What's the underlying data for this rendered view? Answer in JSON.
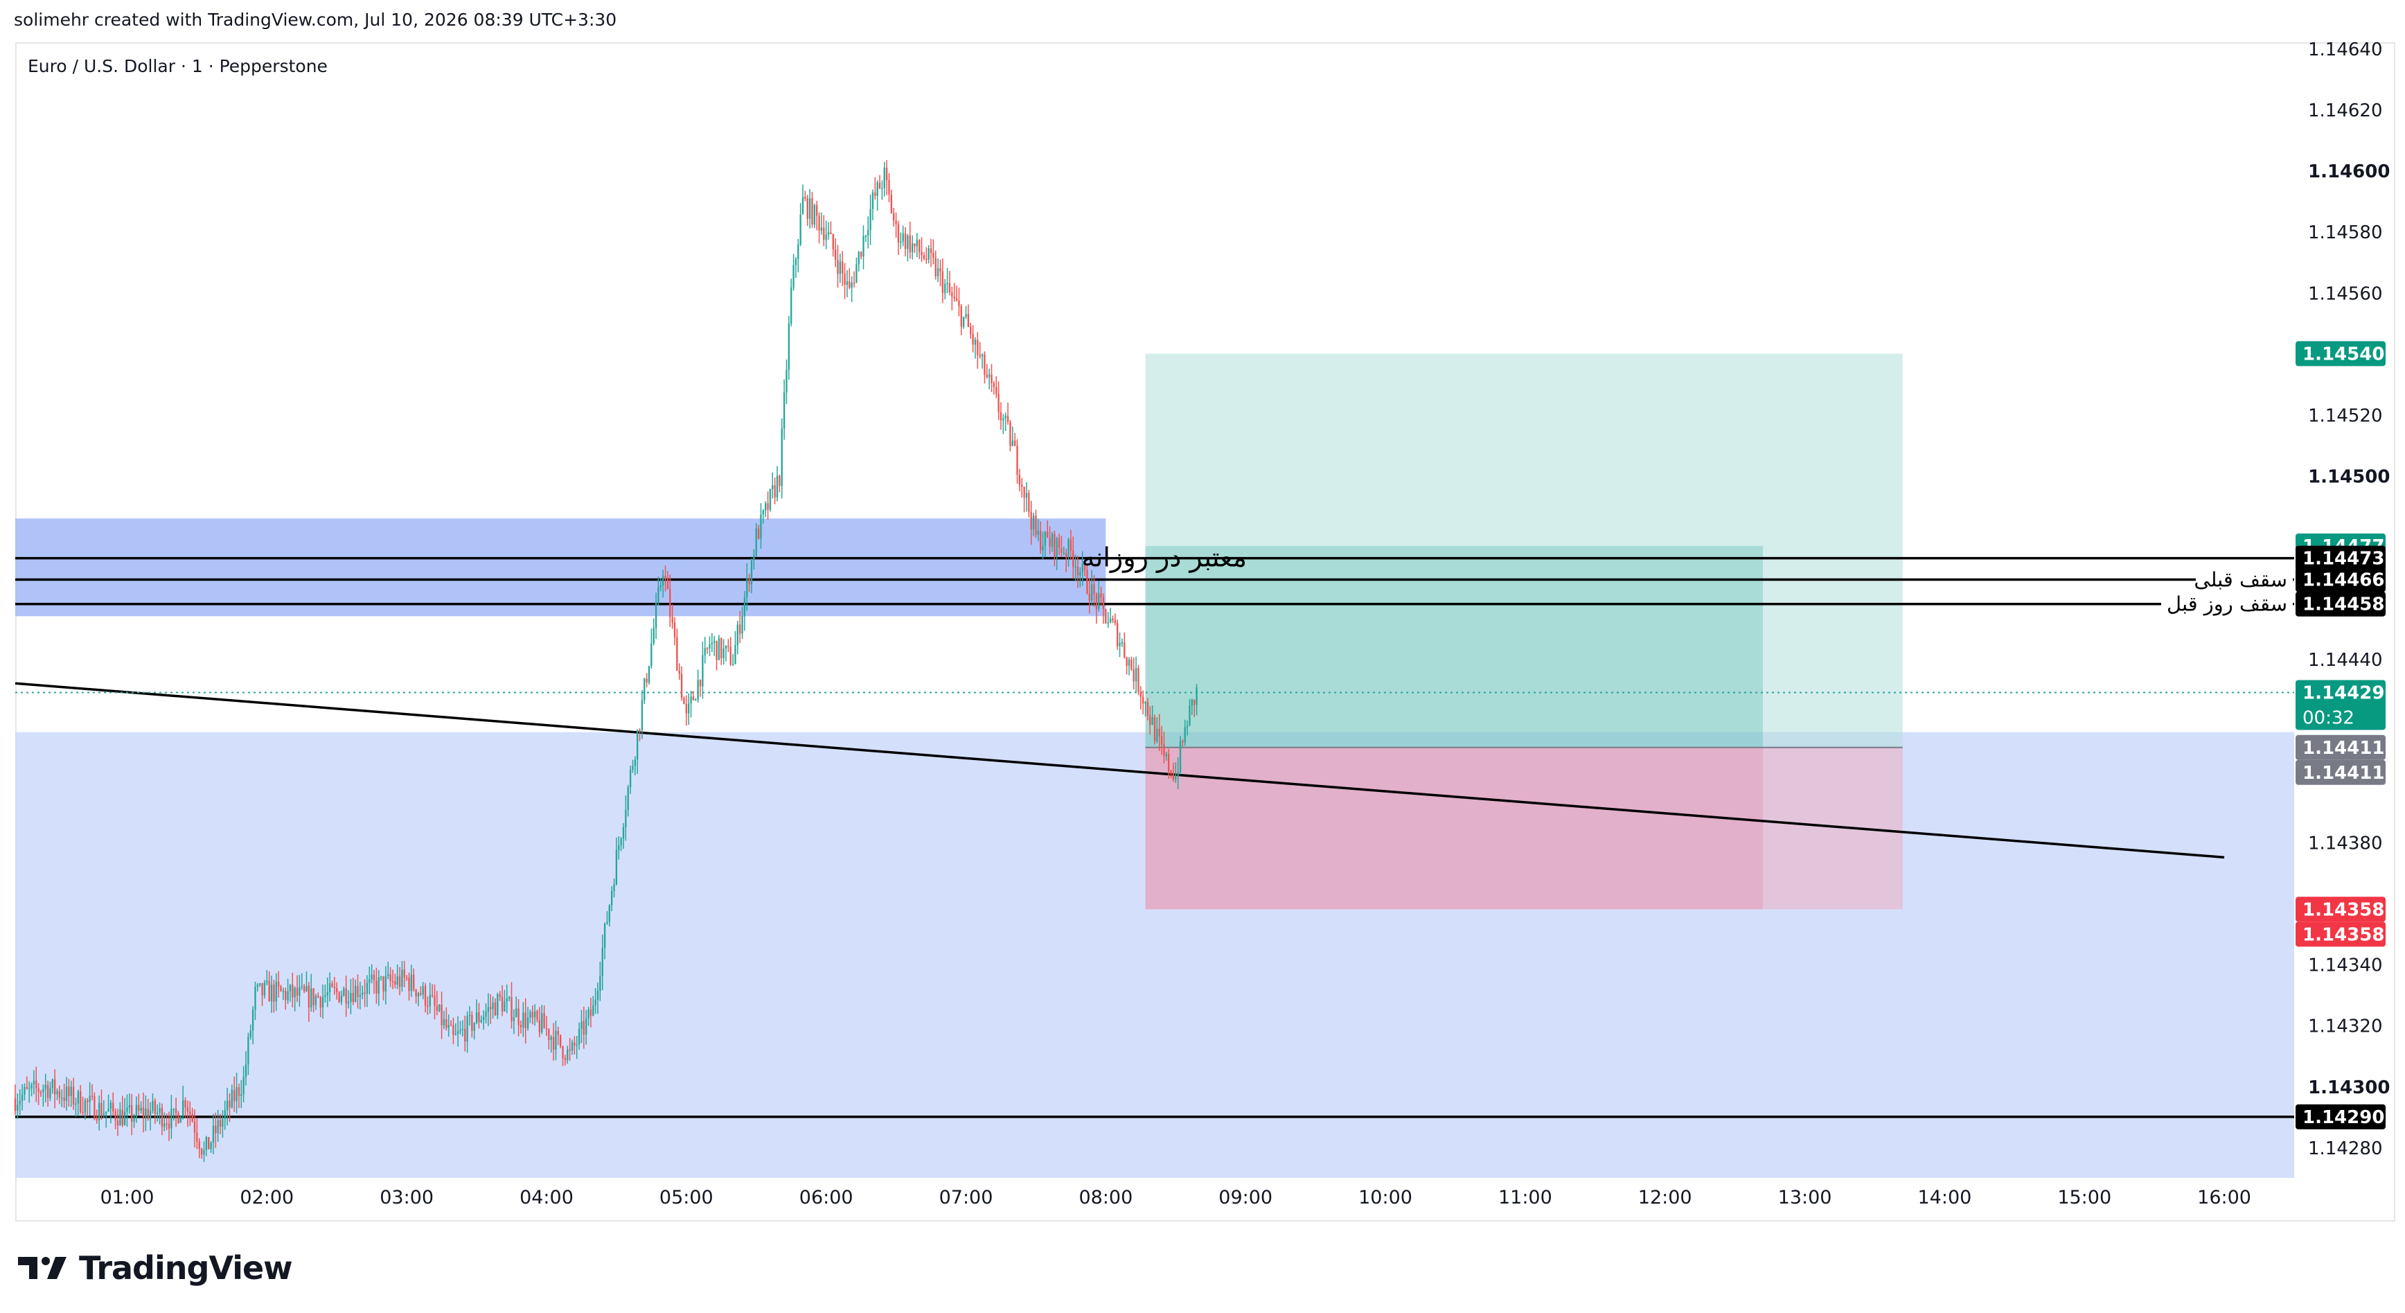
{
  "header": {
    "caption": "solimehr created with TradingView.com, Jul 10, 2026 08:39 UTC+3:30"
  },
  "symbol": {
    "title": "Euro / U.S. Dollar · 1 · Pepperstone"
  },
  "branding": {
    "logo_text": "TradingView",
    "logo_icon": "tradingview-logo-icon"
  },
  "colors": {
    "up": "#26a69a",
    "down": "#ef5350",
    "demand_zone": "#c9d7fb",
    "supply_zone": "#9cb4f8",
    "profit_zone": "#b2dfdb",
    "loss_zone": "#f5a5b4",
    "target_label": "#089981",
    "stop_label": "#f23645",
    "level_label": "#000000",
    "current_label": "#089981",
    "entry_label": "#787b86"
  },
  "chart_data": {
    "type": "candlestick",
    "title": "Euro / U.S. Dollar · 1 · Pepperstone",
    "xlabel": "",
    "ylabel": "",
    "ylim": [
      1.1427,
      1.14642
    ],
    "xlim": [
      "00:12",
      "16:30"
    ],
    "x_ticks": [
      "01:00",
      "02:00",
      "03:00",
      "04:00",
      "05:00",
      "06:00",
      "07:00",
      "08:00",
      "09:00",
      "10:00",
      "11:00",
      "12:00",
      "13:00",
      "14:00",
      "15:00",
      "16:00"
    ],
    "y_ticks": [
      "1.14280",
      "1.14300",
      "1.14320",
      "1.14340",
      "1.14380",
      "1.14440",
      "1.14500",
      "1.14520",
      "1.14560",
      "1.14580",
      "1.14600",
      "1.14620",
      "1.14640"
    ],
    "y_ticks_bold": [
      "1.14300",
      "1.14500",
      "1.14600"
    ],
    "price_path": [
      [
        "00:12",
        1.14296
      ],
      [
        "00:25",
        1.143
      ],
      [
        "00:40",
        1.14295
      ],
      [
        "00:50",
        1.14292
      ],
      [
        "01:00",
        1.1429
      ],
      [
        "01:10",
        1.14292
      ],
      [
        "01:20",
        1.14289
      ],
      [
        "01:25",
        1.14296
      ],
      [
        "01:33",
        1.14278
      ],
      [
        "01:40",
        1.14288
      ],
      [
        "01:50",
        1.14302
      ],
      [
        "01:55",
        1.1433
      ],
      [
        "02:00",
        1.14331
      ],
      [
        "02:20",
        1.14329
      ],
      [
        "02:40",
        1.14332
      ],
      [
        "03:00",
        1.14335
      ],
      [
        "03:10",
        1.14328
      ],
      [
        "03:20",
        1.14315
      ],
      [
        "03:30",
        1.14322
      ],
      [
        "03:40",
        1.14328
      ],
      [
        "03:50",
        1.14322
      ],
      [
        "03:58",
        1.1432
      ],
      [
        "04:10",
        1.1431
      ],
      [
        "04:20",
        1.14325
      ],
      [
        "04:30",
        1.14375
      ],
      [
        "04:40",
        1.1442
      ],
      [
        "04:50",
        1.1447
      ],
      [
        "05:00",
        1.1442
      ],
      [
        "05:10",
        1.14445
      ],
      [
        "05:20",
        1.1444
      ],
      [
        "05:30",
        1.1448
      ],
      [
        "05:40",
        1.145
      ],
      [
        "05:45",
        1.1456
      ],
      [
        "05:50",
        1.1459
      ],
      [
        "06:00",
        1.1458
      ],
      [
        "06:10",
        1.1456
      ],
      [
        "06:20",
        1.1459
      ],
      [
        "06:25",
        1.14598
      ],
      [
        "06:30",
        1.1458
      ],
      [
        "06:45",
        1.1457
      ],
      [
        "07:00",
        1.1455
      ],
      [
        "07:10",
        1.1453
      ],
      [
        "07:20",
        1.1451
      ],
      [
        "07:30",
        1.1448
      ],
      [
        "07:45",
        1.14475
      ],
      [
        "07:55",
        1.1446
      ],
      [
        "08:05",
        1.14448
      ],
      [
        "08:15",
        1.1443
      ],
      [
        "08:25",
        1.14407
      ],
      [
        "08:30",
        1.14402
      ],
      [
        "08:35",
        1.1442
      ],
      [
        "08:39",
        1.14429
      ]
    ],
    "zones": [
      {
        "name": "supply-zone",
        "y_top": 1.14486,
        "y_bottom": 1.14454,
        "x_start": "00:12",
        "x_end": "08:00"
      },
      {
        "name": "demand-zone",
        "y_top": 1.14416,
        "y_bottom": 1.1427,
        "x_start": "00:12",
        "x_end": "16:30"
      }
    ],
    "position": {
      "type": "long",
      "entry": 1.14411,
      "target": 1.1454,
      "stop": 1.14358,
      "x_start": "08:17",
      "x_end": "13:42",
      "inner_target": 1.14477,
      "inner_x_end": "12:42"
    },
    "horizontal_levels": [
      {
        "price": 1.14473,
        "label": "معتبر در روزانه",
        "x_start": "00:12"
      },
      {
        "price": 1.14466,
        "label": "سقف قبلی",
        "x_start": "00:12"
      },
      {
        "price": 1.14458,
        "label": "سقف روز قبل",
        "x_start": "00:12"
      },
      {
        "price": 1.1429,
        "label": "",
        "x_start": "00:12"
      }
    ],
    "trendline": {
      "x1": "00:12",
      "y1": 1.14432,
      "x2": "16:00",
      "y2": 1.14375
    },
    "current_price": 1.14429,
    "countdown": "00:32",
    "price_labels": [
      {
        "value": "1.14540",
        "role": "target"
      },
      {
        "value": "1.14477",
        "role": "target"
      },
      {
        "value": "1.14473",
        "role": "level"
      },
      {
        "value": "1.14466",
        "role": "level"
      },
      {
        "value": "1.14458",
        "role": "level"
      },
      {
        "value": "1.14429",
        "role": "current"
      },
      {
        "value": "1.14411",
        "role": "entry"
      },
      {
        "value": "1.14411",
        "role": "entry"
      },
      {
        "value": "1.14358",
        "role": "stop"
      },
      {
        "value": "1.14358",
        "role": "stop"
      },
      {
        "value": "1.14290",
        "role": "level"
      }
    ]
  }
}
